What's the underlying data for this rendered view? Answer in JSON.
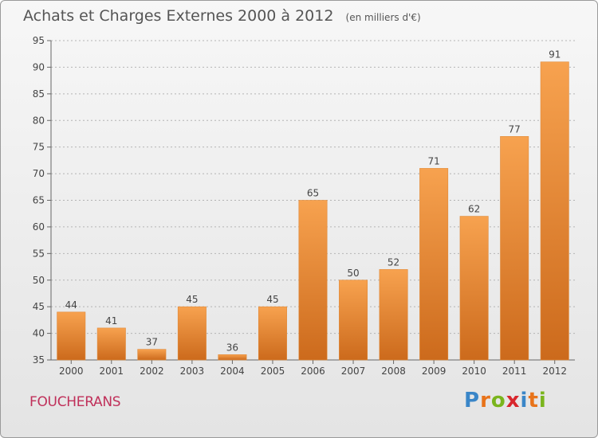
{
  "chart_data": {
    "type": "bar",
    "title": "Achats et Charges Externes 2000 à 2012",
    "unit": "(en milliers d'€)",
    "categories": [
      "2000",
      "2001",
      "2002",
      "2003",
      "2004",
      "2005",
      "2006",
      "2007",
      "2008",
      "2009",
      "2010",
      "2011",
      "2012"
    ],
    "values": [
      44,
      41,
      37,
      45,
      36,
      45,
      65,
      50,
      52,
      71,
      62,
      77,
      91
    ],
    "ylim": [
      35,
      95
    ],
    "yticks": [
      35,
      40,
      45,
      50,
      55,
      60,
      65,
      70,
      75,
      80,
      85,
      90,
      95
    ],
    "grid": true,
    "bar_color_top": "#f7a24f",
    "bar_color_bottom": "#cc6a1c"
  },
  "footer": {
    "commune": "FOUCHERANS"
  },
  "brand": {
    "name": "Proxiti",
    "letters": [
      {
        "char": "P",
        "color": "#3a86c8"
      },
      {
        "char": "r",
        "color": "#e8731a"
      },
      {
        "char": "o",
        "color": "#7ab51d"
      },
      {
        "char": "x",
        "color": "#d8262d"
      },
      {
        "char": "i",
        "color": "#3a86c8"
      },
      {
        "char": "t",
        "color": "#e8731a"
      },
      {
        "char": "i",
        "color": "#7ab51d"
      }
    ]
  }
}
